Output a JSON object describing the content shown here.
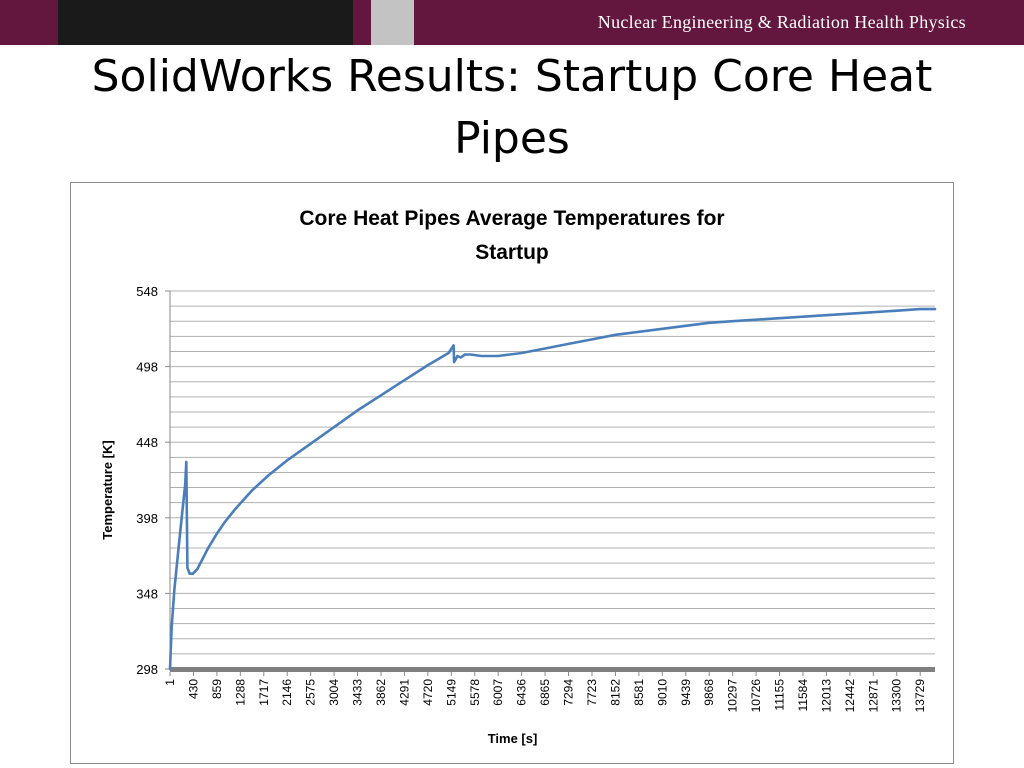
{
  "header": {
    "org": "Nuclear Engineering & Radiation Health Physics"
  },
  "slide": {
    "title": "SolidWorks Results: Startup Core Heat Pipes"
  },
  "colors": {
    "banner": "#63173f",
    "banner_dark": "#1a1a1a",
    "banner_gray": "#c3c3c3",
    "series": "#4a7ebb",
    "grid": "#b0b0b0",
    "axis": "#8a8a8a"
  },
  "chart_data": {
    "type": "line",
    "title": "Core Heat Pipes Average Temperatures for Startup",
    "xlabel": "Time [s]",
    "ylabel": "Temperature [K]",
    "xlim": [
      1,
      14000
    ],
    "ylim": [
      298,
      548
    ],
    "y_ticks": [
      298,
      348,
      398,
      448,
      498,
      548
    ],
    "y_minor_step": 10,
    "x_tick_labels": [
      "1",
      "430",
      "859",
      "1288",
      "1717",
      "2146",
      "2575",
      "3004",
      "3433",
      "3862",
      "4291",
      "4720",
      "5149",
      "5578",
      "6007",
      "6436",
      "6865",
      "7294",
      "7723",
      "8152",
      "8581",
      "9010",
      "9439",
      "9868",
      "10297",
      "10726",
      "11155",
      "11584",
      "12013",
      "12442",
      "12871",
      "13300",
      "13729"
    ],
    "grid": true,
    "legend": "none",
    "series": [
      {
        "x": [
          1,
          30,
          80,
          150,
          220,
          280,
          300,
          320,
          360,
          420,
          500,
          600,
          700,
          850,
          1000,
          1200,
          1500,
          1800,
          2146,
          2575,
          3004,
          3433,
          3862,
          4291,
          4720,
          5100,
          5190,
          5200,
          5260,
          5320,
          5400,
          5500,
          5700,
          6007,
          6436,
          6865,
          7294,
          7723,
          8152,
          8581,
          9010,
          9439,
          9868,
          10297,
          10726,
          11155,
          11584,
          12013,
          12442,
          12871,
          13300,
          13729,
          14000
        ],
        "y": [
          298,
          325,
          350,
          375,
          400,
          420,
          435,
          365,
          361,
          361,
          364,
          371,
          378,
          387,
          395,
          404,
          416,
          426,
          436,
          447,
          458,
          469,
          479,
          489,
          499,
          507,
          512,
          501,
          505,
          504,
          506,
          506,
          505,
          505,
          507,
          510,
          513,
          516,
          519,
          521,
          523,
          525,
          527,
          528,
          529,
          530,
          531,
          532,
          533,
          534,
          535,
          536,
          536
        ]
      }
    ]
  }
}
